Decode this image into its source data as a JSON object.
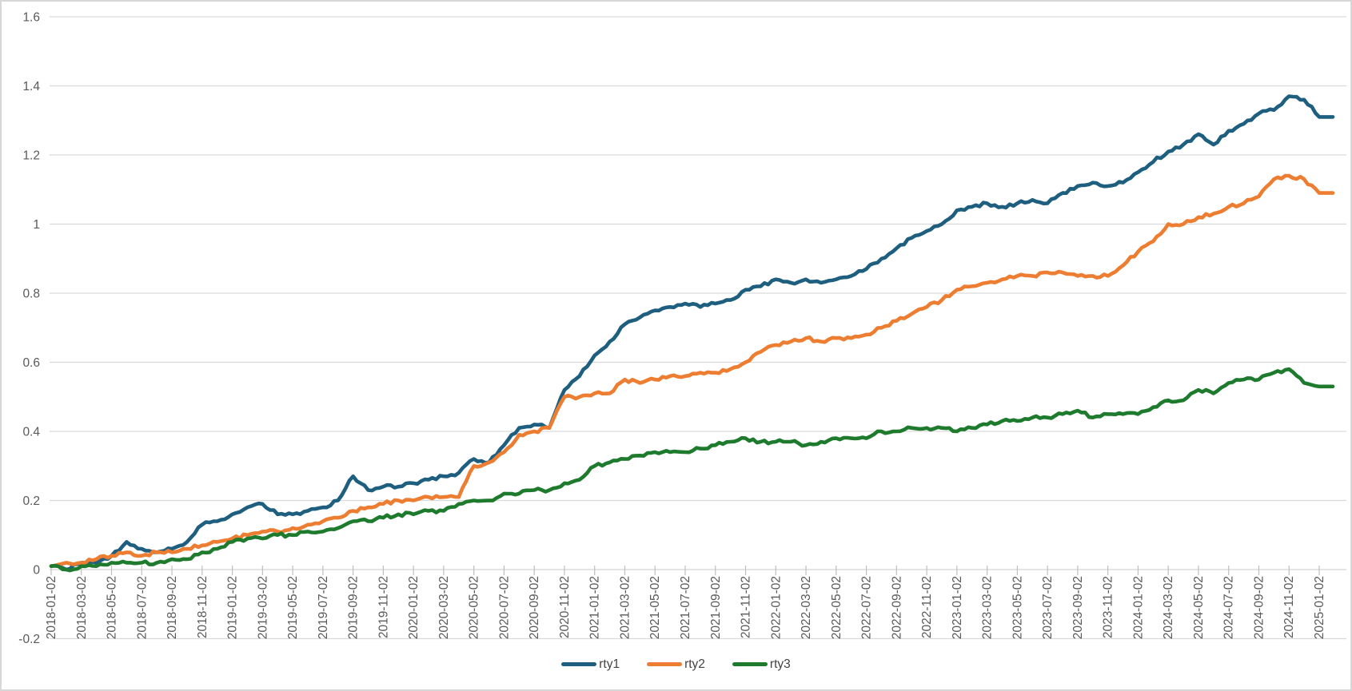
{
  "chart_data": {
    "type": "line",
    "title": "",
    "xlabel": "",
    "ylabel": "",
    "ylim": [
      -0.2,
      1.6
    ],
    "grid": "horizontal",
    "legend_position": "bottom-center",
    "colors": {
      "gridline": "#d9d9d9",
      "axis_line": "#d9d9d9",
      "tick_mark": "#bfbfbf",
      "axis_text": "#595959",
      "legend_text": "#424242",
      "background": "#ffffff"
    },
    "yticks": [
      {
        "value": -0.2,
        "label": "-0.2"
      },
      {
        "value": 0,
        "label": "0"
      },
      {
        "value": 0.2,
        "label": "0.2"
      },
      {
        "value": 0.4,
        "label": "0.4"
      },
      {
        "value": 0.6,
        "label": "0.6"
      },
      {
        "value": 0.8,
        "label": "0.8"
      },
      {
        "value": 1,
        "label": "1"
      },
      {
        "value": 1.2,
        "label": "1.2"
      },
      {
        "value": 1.4,
        "label": "1.4"
      },
      {
        "value": 1.6,
        "label": "1.6"
      }
    ],
    "x_tick_labels": [
      "2018-01-02",
      "2018-03-02",
      "2018-05-02",
      "2018-07-02",
      "2018-09-02",
      "2018-11-02",
      "2019-01-02",
      "2019-03-02",
      "2019-05-02",
      "2019-07-02",
      "2019-09-02",
      "2019-11-02",
      "2020-01-02",
      "2020-03-02",
      "2020-05-02",
      "2020-07-02",
      "2020-09-02",
      "2020-11-02",
      "2021-01-02",
      "2021-03-02",
      "2021-05-02",
      "2021-07-02",
      "2021-09-02",
      "2021-11-02",
      "2022-01-02",
      "2022-03-02",
      "2022-05-02",
      "2022-07-02",
      "2022-09-02",
      "2022-11-02",
      "2023-01-02",
      "2023-03-02",
      "2023-05-02",
      "2023-07-02",
      "2023-09-02",
      "2023-11-02",
      "2024-01-02",
      "2024-03-02",
      "2024-05-02",
      "2024-07-02",
      "2024-09-02",
      "2024-11-02",
      "2025-01-02"
    ],
    "categories": [
      "2018-01",
      "2018-02",
      "2018-03",
      "2018-04",
      "2018-05",
      "2018-06",
      "2018-07",
      "2018-08",
      "2018-09",
      "2018-10",
      "2018-11",
      "2018-12",
      "2019-01",
      "2019-02",
      "2019-03",
      "2019-04",
      "2019-05",
      "2019-06",
      "2019-07",
      "2019-08",
      "2019-09",
      "2019-10",
      "2019-11",
      "2019-12",
      "2020-01",
      "2020-02",
      "2020-03",
      "2020-04",
      "2020-05",
      "2020-06",
      "2020-07",
      "2020-08",
      "2020-09",
      "2020-10",
      "2020-11",
      "2020-12",
      "2021-01",
      "2021-02",
      "2021-03",
      "2021-04",
      "2021-05",
      "2021-06",
      "2021-07",
      "2021-08",
      "2021-09",
      "2021-10",
      "2021-11",
      "2021-12",
      "2022-01",
      "2022-02",
      "2022-03",
      "2022-04",
      "2022-05",
      "2022-06",
      "2022-07",
      "2022-08",
      "2022-09",
      "2022-10",
      "2022-11",
      "2022-12",
      "2023-01",
      "2023-02",
      "2023-03",
      "2023-04",
      "2023-05",
      "2023-06",
      "2023-07",
      "2023-08",
      "2023-09",
      "2023-10",
      "2023-11",
      "2023-12",
      "2024-01",
      "2024-02",
      "2024-03",
      "2024-04",
      "2024-05",
      "2024-06",
      "2024-07",
      "2024-08",
      "2024-09",
      "2024-10",
      "2024-11",
      "2024-12",
      "2025-01"
    ],
    "series": [
      {
        "name": "rty1",
        "color": "#1e5f80",
        "values": [
          0.01,
          0.0,
          0.02,
          0.02,
          0.04,
          0.08,
          0.06,
          0.05,
          0.06,
          0.08,
          0.13,
          0.14,
          0.16,
          0.18,
          0.19,
          0.16,
          0.16,
          0.17,
          0.18,
          0.2,
          0.27,
          0.23,
          0.24,
          0.24,
          0.25,
          0.26,
          0.27,
          0.28,
          0.32,
          0.31,
          0.36,
          0.41,
          0.42,
          0.41,
          0.52,
          0.56,
          0.62,
          0.66,
          0.71,
          0.73,
          0.75,
          0.76,
          0.77,
          0.76,
          0.77,
          0.78,
          0.81,
          0.82,
          0.84,
          0.83,
          0.84,
          0.83,
          0.84,
          0.85,
          0.87,
          0.9,
          0.93,
          0.96,
          0.98,
          1.0,
          1.04,
          1.05,
          1.06,
          1.05,
          1.06,
          1.07,
          1.06,
          1.09,
          1.11,
          1.12,
          1.11,
          1.12,
          1.15,
          1.18,
          1.21,
          1.23,
          1.26,
          1.23,
          1.27,
          1.29,
          1.32,
          1.33,
          1.37,
          1.36,
          1.31
        ]
      },
      {
        "name": "rty2",
        "color": "#ed7d31",
        "values": [
          0.01,
          0.02,
          0.02,
          0.03,
          0.04,
          0.05,
          0.04,
          0.05,
          0.05,
          0.06,
          0.07,
          0.08,
          0.09,
          0.1,
          0.11,
          0.11,
          0.12,
          0.13,
          0.14,
          0.15,
          0.17,
          0.18,
          0.19,
          0.2,
          0.2,
          0.21,
          0.21,
          0.21,
          0.3,
          0.31,
          0.34,
          0.39,
          0.4,
          0.41,
          0.5,
          0.5,
          0.51,
          0.51,
          0.55,
          0.54,
          0.55,
          0.56,
          0.56,
          0.57,
          0.57,
          0.58,
          0.6,
          0.63,
          0.65,
          0.66,
          0.67,
          0.66,
          0.67,
          0.67,
          0.68,
          0.7,
          0.72,
          0.74,
          0.76,
          0.78,
          0.81,
          0.82,
          0.83,
          0.84,
          0.85,
          0.85,
          0.86,
          0.86,
          0.85,
          0.85,
          0.85,
          0.88,
          0.92,
          0.95,
          1.0,
          1.0,
          1.02,
          1.03,
          1.05,
          1.06,
          1.08,
          1.13,
          1.14,
          1.13,
          1.09
        ]
      },
      {
        "name": "rty3",
        "color": "#1e7b2e",
        "values": [
          0.01,
          0.0,
          0.01,
          0.01,
          0.02,
          0.02,
          0.02,
          0.02,
          0.03,
          0.03,
          0.05,
          0.06,
          0.08,
          0.09,
          0.09,
          0.1,
          0.1,
          0.11,
          0.11,
          0.12,
          0.14,
          0.14,
          0.15,
          0.16,
          0.16,
          0.17,
          0.17,
          0.19,
          0.2,
          0.2,
          0.22,
          0.22,
          0.23,
          0.23,
          0.25,
          0.26,
          0.3,
          0.31,
          0.32,
          0.33,
          0.34,
          0.34,
          0.34,
          0.35,
          0.36,
          0.37,
          0.38,
          0.37,
          0.37,
          0.37,
          0.36,
          0.37,
          0.38,
          0.38,
          0.38,
          0.4,
          0.4,
          0.41,
          0.41,
          0.41,
          0.4,
          0.41,
          0.42,
          0.43,
          0.43,
          0.44,
          0.44,
          0.45,
          0.46,
          0.44,
          0.45,
          0.45,
          0.45,
          0.47,
          0.49,
          0.49,
          0.52,
          0.51,
          0.54,
          0.55,
          0.55,
          0.57,
          0.58,
          0.54,
          0.53
        ]
      }
    ]
  }
}
